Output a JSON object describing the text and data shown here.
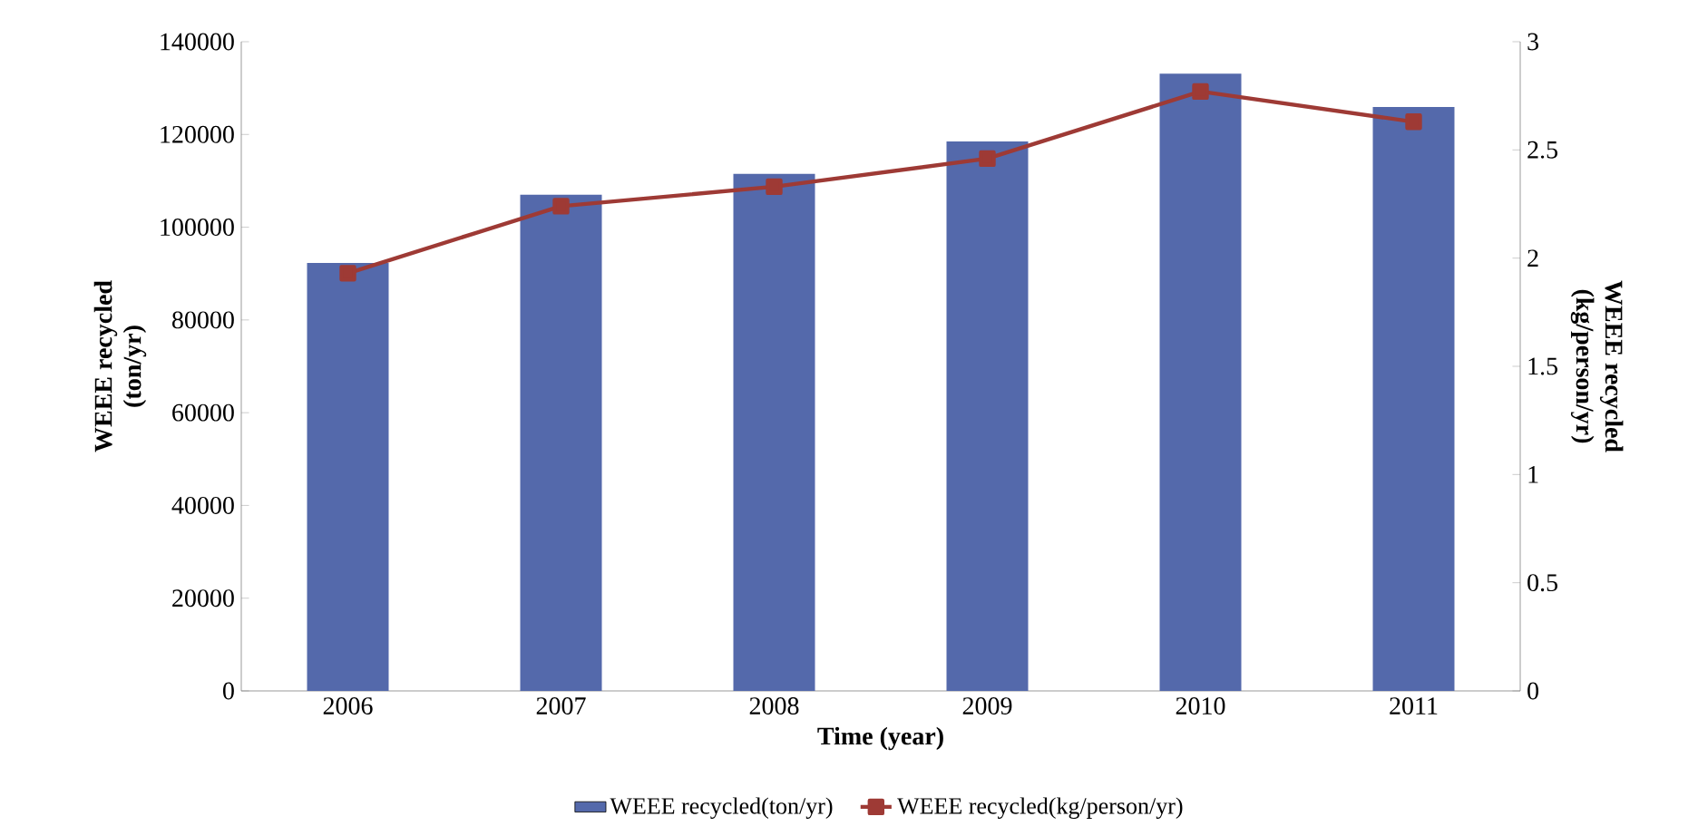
{
  "chart_data": {
    "type": "bar",
    "xlabel": "Time (year)",
    "ylabel": "WEEE recycled\n(ton/yr)",
    "y2label": "WEEE recycled\n(kg/person/yr)",
    "categories": [
      "2006",
      "2007",
      "2008",
      "2009",
      "2010",
      "2011"
    ],
    "series": [
      {
        "name": "WEEE recycled(ton/yr)",
        "color": "#5469ab",
        "values": [
          92300,
          107000,
          111500,
          118500,
          133100,
          125900
        ]
      },
      {
        "name": "WEEE recycled(kg/person/yr)",
        "type": "line",
        "axis": "y2",
        "marker": "square",
        "color": "#9e3a35",
        "values": [
          1.93,
          2.24,
          2.33,
          2.46,
          2.77,
          2.63
        ]
      }
    ],
    "ylim": [
      0,
      140000
    ],
    "yticks": [
      0,
      20000,
      40000,
      60000,
      80000,
      100000,
      120000,
      140000
    ],
    "y2lim": [
      0,
      3
    ],
    "y2ticks": [
      0,
      0.5,
      1,
      1.5,
      2,
      2.5,
      3
    ],
    "legend": "bottom",
    "grid": false
  }
}
